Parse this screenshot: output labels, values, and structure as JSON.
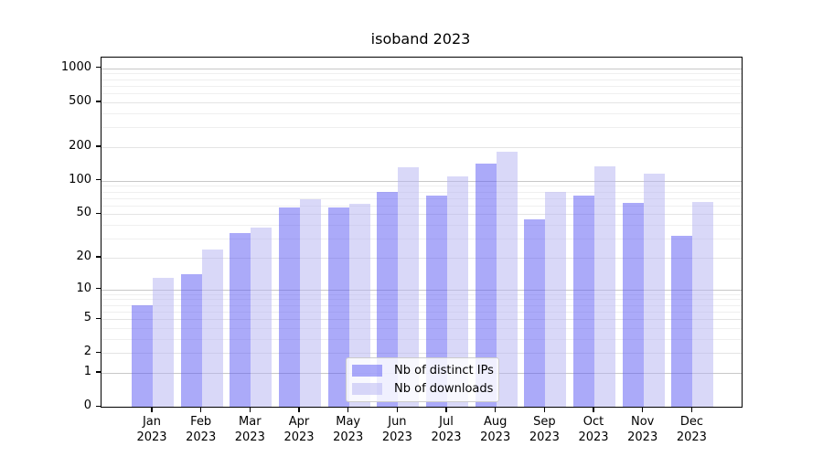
{
  "title": "isoband 2023",
  "chart_data": {
    "type": "bar",
    "title": "isoband 2023",
    "categories": [
      "Jan",
      "Feb",
      "Mar",
      "Apr",
      "May",
      "Jun",
      "Jul",
      "Aug",
      "Sep",
      "Oct",
      "Nov",
      "Dec"
    ],
    "category_year": "2023",
    "series": [
      {
        "name": "Nb of distinct IPs",
        "color": "rgba(88,86,243,0.5)",
        "values": [
          7,
          14,
          34,
          57,
          58,
          80,
          73,
          143,
          45,
          73,
          63,
          32
        ]
      },
      {
        "name": "Nb of downloads",
        "color": "rgba(179,177,242,0.5)",
        "values": [
          13,
          24,
          38,
          68,
          62,
          133,
          110,
          183,
          79,
          135,
          116,
          64
        ]
      }
    ],
    "yscale": "log1p",
    "y_ticks": [
      0,
      1,
      2,
      5,
      10,
      20,
      50,
      100,
      200,
      500,
      1000
    ],
    "y_minor_gridlines": [
      3,
      4,
      6,
      7,
      8,
      9,
      30,
      40,
      60,
      70,
      80,
      90,
      300,
      400,
      600,
      700,
      800,
      900
    ],
    "ylim": [
      0,
      1250
    ],
    "xlabel": "",
    "ylabel": "",
    "grid": true,
    "legend_position": "lower center",
    "grid_colors": {
      "decade": "#c8c8c8",
      "labeled": "#e4e4e4",
      "minor": "#efefef"
    }
  }
}
